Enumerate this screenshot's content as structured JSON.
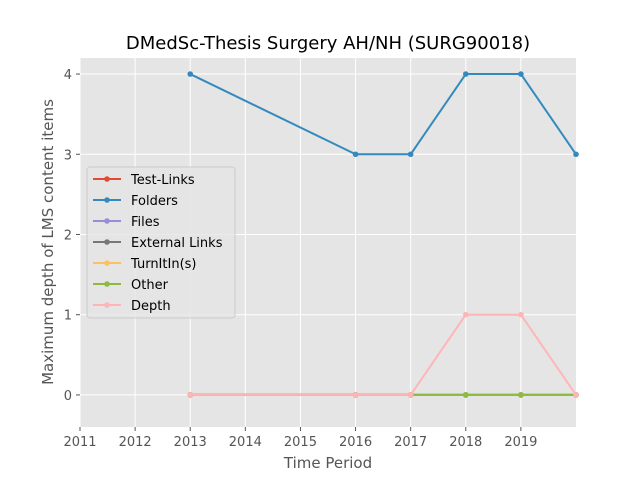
{
  "chart_data": {
    "type": "line",
    "title": "DMedSc-Thesis Surgery AH/NH (SURG90018)",
    "xlabel": "Time Period",
    "ylabel": "Maximum depth of LMS content items",
    "x_ticks": [
      "2011",
      "2012",
      "2013",
      "2014",
      "2015",
      "2016",
      "2017",
      "2018",
      "2019"
    ],
    "y_ticks": [
      "0",
      "1",
      "2",
      "3",
      "4"
    ],
    "xlim": [
      0,
      9
    ],
    "ylim": [
      -0.4,
      4.2
    ],
    "x": [
      "2013",
      "2016",
      "2017",
      "2018",
      "2019",
      "2020"
    ],
    "x_positions": [
      2,
      5,
      6,
      7,
      8,
      9
    ],
    "grid": true,
    "legend_position": "center-left",
    "series": [
      {
        "name": "Test-Links",
        "color": "#e24a33",
        "values": [
          0,
          0,
          0,
          0,
          0,
          0
        ]
      },
      {
        "name": "Folders",
        "color": "#348abd",
        "values": [
          4,
          3,
          3,
          4,
          4,
          3
        ]
      },
      {
        "name": "Files",
        "color": "#988ed5",
        "values": [
          0,
          0,
          0,
          0,
          0,
          0
        ]
      },
      {
        "name": "External Links",
        "color": "#777777",
        "values": [
          0,
          0,
          0,
          0,
          0,
          0
        ]
      },
      {
        "name": "TurnItIn(s)",
        "color": "#fbc15e",
        "values": [
          0,
          0,
          0,
          0,
          0,
          0
        ]
      },
      {
        "name": "Other",
        "color": "#8eba42",
        "values": [
          0,
          0,
          0,
          0,
          0,
          0
        ]
      },
      {
        "name": "Depth",
        "color": "#ffb5b8",
        "values": [
          0,
          0,
          0,
          1,
          1,
          0
        ]
      }
    ]
  }
}
